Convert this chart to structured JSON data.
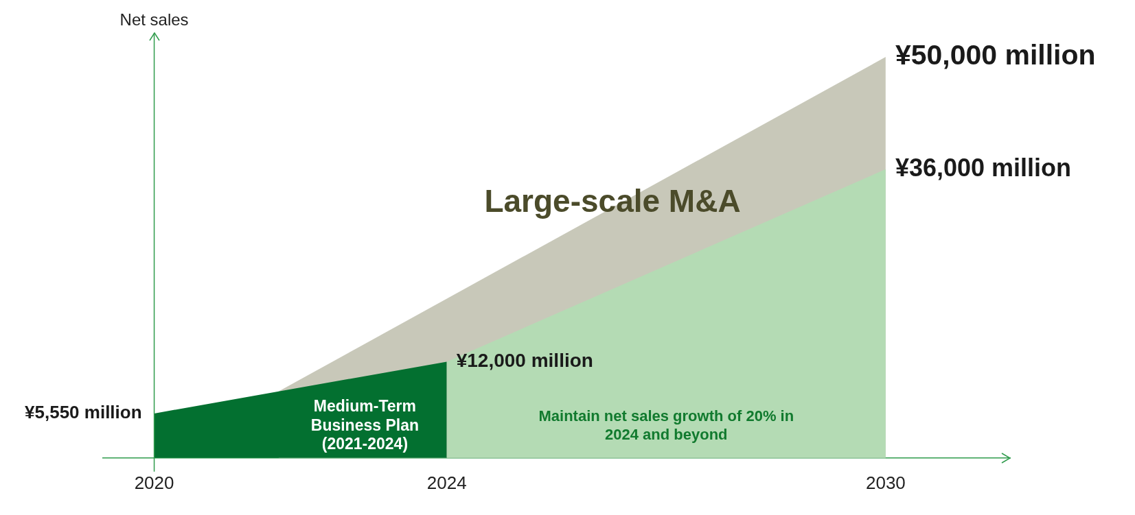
{
  "chart_data": {
    "type": "area",
    "ylabel": "Net sales",
    "xlim": [
      2019.3,
      2031.7
    ],
    "xticks": [
      2020,
      2024,
      2030
    ],
    "ylim": [
      0,
      53000
    ],
    "ref_lines": [
      {
        "axis": "x",
        "value": 2020,
        "color": "#2f9b4c"
      }
    ],
    "tick_labels": "x",
    "grid": false,
    "legend": false,
    "series": [
      {
        "name": "Medium-Term Business Plan (2021-2024)",
        "color": "#037030",
        "x": [
          2020,
          2024
        ],
        "values": [
          5550,
          12000
        ],
        "value_labels": [
          "¥5,550 million",
          "¥12,000 million"
        ]
      },
      {
        "name": "Maintain net sales growth of 20% in 2024 and beyond",
        "color": "#b4dbb4",
        "x": [
          2024,
          2030
        ],
        "values": [
          12000,
          36000
        ],
        "value_labels": [
          null,
          "¥36,000 million"
        ]
      },
      {
        "name": "Large-scale M&A",
        "color": "#c8c8b9",
        "x": [
          2021.7,
          2030
        ],
        "values": [
          8300,
          50000
        ],
        "value_labels": [
          null,
          "¥50,000 million"
        ]
      }
    ]
  }
}
